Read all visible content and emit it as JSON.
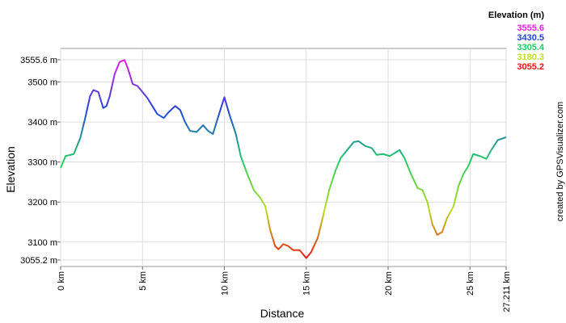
{
  "chart_data": {
    "type": "line",
    "x_label": "Distance",
    "y_label": "Elevation",
    "credit": "created by GPSVisualizer.com",
    "legend": {
      "title": "Elevation (m)",
      "position": "top-right",
      "entries": [
        {
          "value": 3555.6,
          "color": "#dd22dd"
        },
        {
          "value": 3430.5,
          "color": "#2244dd"
        },
        {
          "value": 3305.4,
          "color": "#22cc66"
        },
        {
          "value": 3180.3,
          "color": "#bbdd22"
        },
        {
          "value": 3055.2,
          "color": "#ee1111"
        }
      ]
    },
    "x": [
      0,
      0.3,
      0.8,
      1.2,
      1.5,
      1.8,
      2.0,
      2.3,
      2.6,
      2.8,
      3.0,
      3.3,
      3.6,
      3.9,
      4.1,
      4.4,
      4.7,
      5.0,
      5.3,
      5.6,
      5.9,
      6.3,
      6.6,
      7.0,
      7.3,
      7.6,
      7.9,
      8.3,
      8.7,
      9.0,
      9.3,
      9.6,
      10.0,
      10.3,
      10.7,
      11.0,
      11.4,
      11.8,
      12.2,
      12.5,
      12.8,
      13.1,
      13.3,
      13.6,
      13.9,
      14.2,
      14.6,
      15.0,
      15.3,
      15.7,
      16.0,
      16.4,
      16.8,
      17.1,
      17.5,
      17.9,
      18.2,
      18.6,
      19.0,
      19.3,
      19.7,
      20.1,
      20.5,
      20.7,
      21.0,
      21.4,
      21.8,
      22.1,
      22.4,
      22.7,
      23.0,
      23.3,
      23.6,
      24.0,
      24.3,
      24.6,
      24.9,
      25.2,
      25.6,
      26.0,
      26.3,
      26.7,
      27.211
    ],
    "values": [
      3285,
      3315,
      3320,
      3360,
      3410,
      3465,
      3480,
      3475,
      3435,
      3440,
      3465,
      3520,
      3550,
      3555,
      3535,
      3495,
      3490,
      3475,
      3460,
      3440,
      3420,
      3410,
      3425,
      3440,
      3430,
      3400,
      3378,
      3375,
      3392,
      3378,
      3370,
      3410,
      3462,
      3420,
      3370,
      3315,
      3270,
      3230,
      3210,
      3190,
      3130,
      3090,
      3082,
      3095,
      3090,
      3080,
      3080,
      3060,
      3075,
      3110,
      3160,
      3230,
      3280,
      3310,
      3330,
      3350,
      3352,
      3340,
      3335,
      3318,
      3320,
      3315,
      3325,
      3330,
      3310,
      3270,
      3235,
      3230,
      3200,
      3145,
      3118,
      3125,
      3160,
      3190,
      3240,
      3270,
      3290,
      3320,
      3315,
      3308,
      3330,
      3355,
      3362
    ],
    "xlim": [
      0,
      27.211
    ],
    "ylim": [
      3055.2,
      3555.6
    ],
    "xticks": [
      {
        "value": 0,
        "label": "0 km"
      },
      {
        "value": 5,
        "label": "5 km"
      },
      {
        "value": 10,
        "label": "10 km"
      },
      {
        "value": 15,
        "label": "15 km"
      },
      {
        "value": 20,
        "label": "20 km"
      },
      {
        "value": 25,
        "label": "25 km"
      },
      {
        "value": 27.211,
        "label": "27.211 km"
      }
    ],
    "yticks": [
      {
        "value": 3055.2,
        "label": "3055.2 m"
      },
      {
        "value": 3100,
        "label": "3100 m"
      },
      {
        "value": 3200,
        "label": "3200 m"
      },
      {
        "value": 3300,
        "label": "3300 m"
      },
      {
        "value": 3400,
        "label": "3400 m"
      },
      {
        "value": 3500,
        "label": "3500 m"
      },
      {
        "value": 3555.6,
        "label": "3555.6 m"
      }
    ],
    "grid": true
  }
}
